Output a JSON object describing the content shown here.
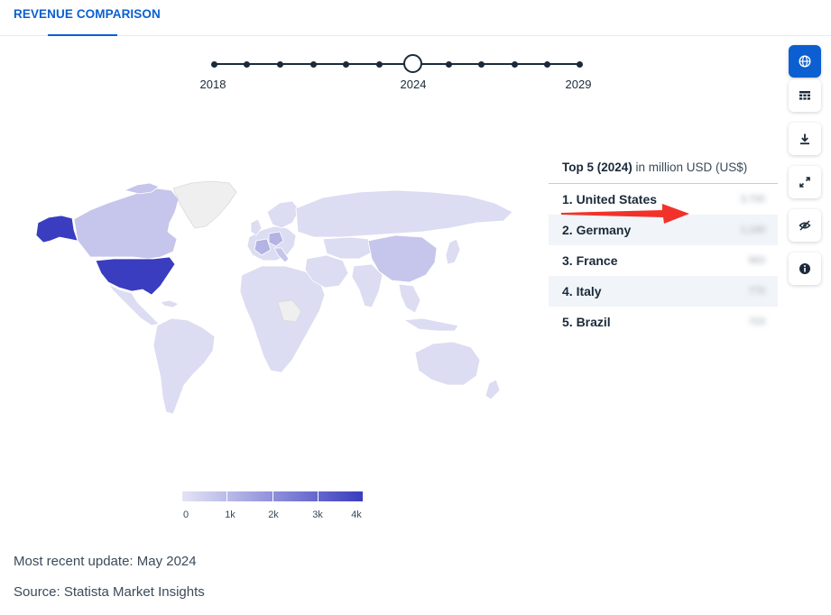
{
  "tab": {
    "label": "REVENUE COMPARISON"
  },
  "timeline": {
    "labels": {
      "start": "2018",
      "selected": "2024",
      "end": "2029"
    }
  },
  "map": {
    "highlight_country": "United States",
    "colors": {
      "max": "#3a3dbf",
      "min": "#e4e4f6",
      "no_data": "#efefef"
    }
  },
  "legend": {
    "ticks": [
      "0",
      "1k",
      "2k",
      "3k",
      "4k"
    ]
  },
  "top5": {
    "title_bold": "Top 5 (2024)",
    "title_rest": " in million USD (US$)",
    "rows": [
      {
        "label": "1. United States",
        "value": "3,700"
      },
      {
        "label": "2. Germany",
        "value": "1,140"
      },
      {
        "label": "3. France",
        "value": "963"
      },
      {
        "label": "4. Italy",
        "value": "770"
      },
      {
        "label": "5. Brazil",
        "value": "703"
      }
    ]
  },
  "sidebar": {
    "buttons": [
      "globe-icon",
      "table-icon",
      "download-icon",
      "expand-icon",
      "hide-icon",
      "info-icon"
    ],
    "accent": "#0b5fd0"
  },
  "footer": {
    "update": "Most recent update: May 2024",
    "source": "Source: Statista Market Insights"
  }
}
